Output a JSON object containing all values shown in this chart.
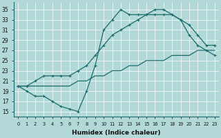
{
  "xlabel": "Humidex (Indice chaleur)",
  "bg_color": "#b2d8d8",
  "grid_color": "#ffffff",
  "line_color": "#1a6b6b",
  "xlim": [
    -0.5,
    23.5
  ],
  "ylim": [
    14.0,
    36.5
  ],
  "xticks": [
    0,
    1,
    2,
    3,
    4,
    5,
    6,
    7,
    8,
    9,
    10,
    11,
    12,
    13,
    14,
    15,
    16,
    17,
    18,
    19,
    20,
    21,
    22,
    23
  ],
  "yticks": [
    15,
    17,
    19,
    21,
    23,
    25,
    27,
    29,
    31,
    33,
    35
  ],
  "line_zigzag_x": [
    0,
    1,
    2,
    3,
    4,
    5,
    6,
    7,
    8,
    9,
    10,
    11,
    12,
    13,
    14,
    15,
    16,
    17,
    18,
    19,
    20,
    21,
    22,
    23
  ],
  "line_zigzag_y": [
    20,
    19,
    18,
    18,
    17,
    16,
    15.5,
    15,
    19,
    24,
    31,
    33,
    35,
    34,
    34,
    34,
    35,
    35,
    34,
    33,
    30,
    28,
    27,
    26
  ],
  "line_upper_x": [
    0,
    1,
    2,
    3,
    4,
    5,
    6,
    7,
    8,
    9,
    10,
    11,
    12,
    13,
    14,
    15,
    16,
    17,
    18,
    19,
    20,
    21,
    22,
    23
  ],
  "line_upper_y": [
    20,
    20,
    21,
    22,
    22,
    22,
    22,
    23,
    24,
    26,
    28,
    30,
    31,
    32,
    33,
    34,
    34,
    34,
    34,
    33,
    32,
    30,
    28,
    28
  ],
  "line_lower_x": [
    0,
    1,
    2,
    3,
    4,
    5,
    6,
    7,
    8,
    9,
    10,
    11,
    12,
    13,
    14,
    15,
    16,
    17,
    18,
    19,
    20,
    21,
    22,
    23
  ],
  "line_lower_y": [
    20,
    20,
    20,
    20,
    20,
    20,
    20,
    21,
    21,
    22,
    22,
    23,
    23,
    24,
    24,
    25,
    25,
    25,
    26,
    26,
    26,
    27,
    27,
    27
  ]
}
